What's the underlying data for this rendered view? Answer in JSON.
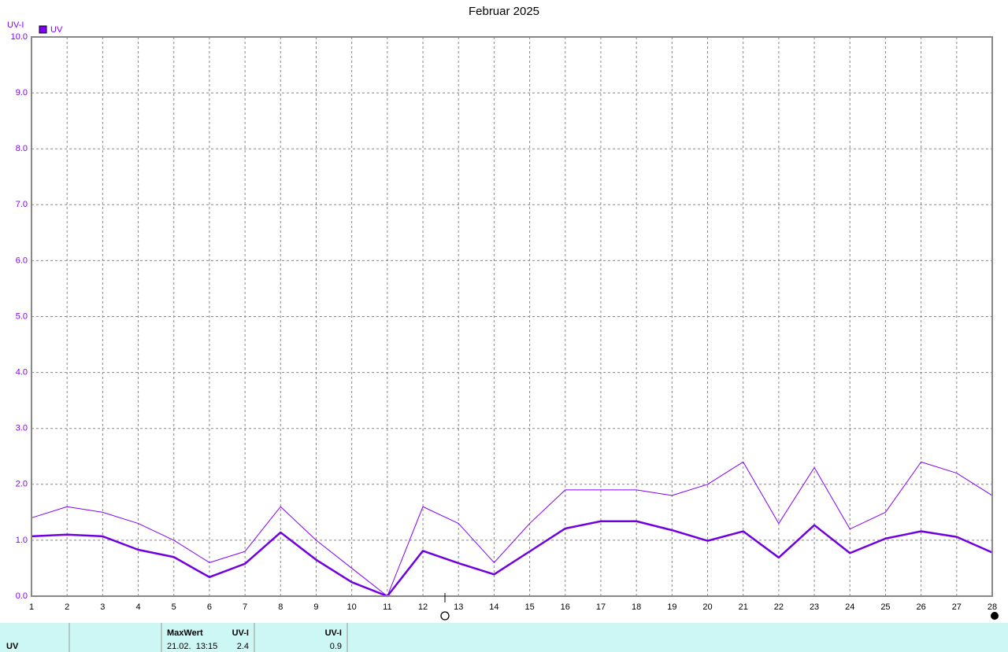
{
  "chart_data": {
    "type": "line",
    "title": "Februar 2025",
    "y_label": "UV-I",
    "x": [
      1,
      2,
      3,
      4,
      5,
      6,
      7,
      8,
      9,
      10,
      11,
      12,
      13,
      14,
      15,
      16,
      17,
      18,
      19,
      20,
      21,
      22,
      23,
      24,
      25,
      26,
      27,
      28
    ],
    "xlim": [
      1,
      28
    ],
    "xticks": [
      1,
      2,
      3,
      4,
      5,
      6,
      7,
      8,
      9,
      10,
      11,
      12,
      13,
      14,
      15,
      16,
      17,
      18,
      19,
      20,
      21,
      22,
      23,
      24,
      25,
      26,
      27,
      28
    ],
    "ylim": [
      0,
      10
    ],
    "yticks": [
      {
        "value": 0,
        "label": "0.0"
      },
      {
        "value": 1,
        "label": "1.0"
      },
      {
        "value": 2,
        "label": "2.0"
      },
      {
        "value": 3,
        "label": "3.0"
      },
      {
        "value": 4,
        "label": "4.0"
      },
      {
        "value": 5,
        "label": "5.0"
      },
      {
        "value": 6,
        "label": "6.0"
      },
      {
        "value": 7,
        "label": "7.0"
      },
      {
        "value": 8,
        "label": "8.0"
      },
      {
        "value": 9,
        "label": "9.0"
      },
      {
        "value": 10,
        "label": "10.0"
      }
    ],
    "grid": true,
    "series": [
      {
        "name": "UV",
        "color": "#8000ff",
        "values": [
          1.4,
          1.6,
          1.5,
          1.3,
          1.0,
          0.6,
          0.8,
          1.6,
          1.0,
          0.5,
          0,
          1.6,
          1.3,
          0.6,
          1.3,
          1.9,
          1.9,
          1.9,
          1.8,
          2.0,
          2.4,
          1.3,
          2.3,
          1.2,
          1.5,
          2.4,
          2.2,
          1.8
        ]
      },
      {
        "color": "#7000e0",
        "values": [
          1.07,
          1.1,
          1.07,
          0.83,
          0.7,
          0.34,
          0.58,
          1.14,
          0.65,
          0.25,
          0,
          0.81,
          0.59,
          0.39,
          0.8,
          1.21,
          1.34,
          1.34,
          1.18,
          0.99,
          1.16,
          0.69,
          1.27,
          0.77,
          1.03,
          1.16,
          1.06,
          0.78
        ]
      }
    ]
  },
  "table": {
    "header": [
      "MaxWert",
      "UV-I",
      "UV-I"
    ],
    "rows": [
      [
        "UV",
        "21.02.  13:15",
        "2.4",
        "0.9"
      ]
    ]
  }
}
